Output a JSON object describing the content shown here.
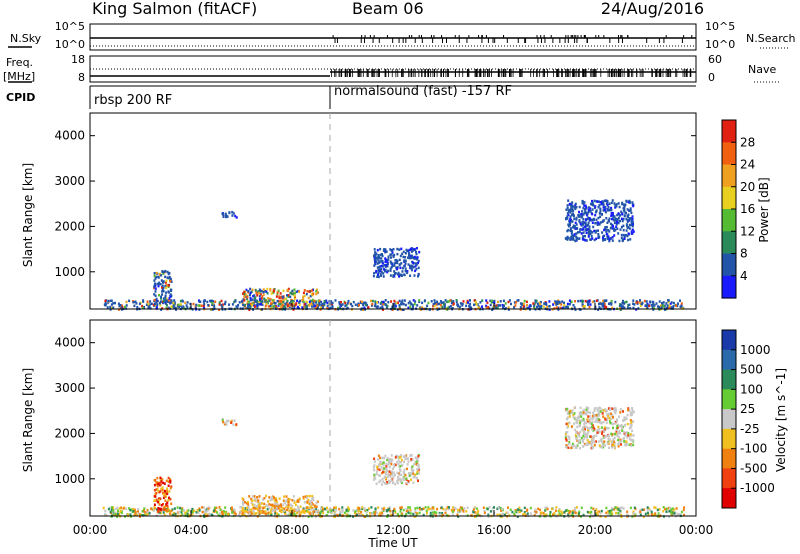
{
  "header": {
    "station": "King Salmon (fitACF)",
    "beam": "Beam 06",
    "date": "24/Aug/2016"
  },
  "strip_labels": {
    "nsky": "N.Sky",
    "nsearch": "N.Search",
    "freq_top": "Freq.",
    "freq_unit": "[MHz]",
    "nave": "Nave",
    "cpid": "CPID",
    "nsky_tick_top": "10^5",
    "nsky_tick_bottom": "10^0",
    "freq_tick_top": "18",
    "freq_tick_bottom": "8",
    "nave_tick_top": "60",
    "nave_tick_bottom": "0"
  },
  "cpid": {
    "segments": [
      {
        "start_hour": 0.0,
        "label": "rbsp 200 RF"
      },
      {
        "start_hour": 9.5,
        "label": "normalsound (fast) -157 RF"
      }
    ]
  },
  "chart_data": [
    {
      "type": "heatmap",
      "title": "",
      "xlabel": "",
      "ylabel": "Slant Range [km]",
      "xlim_hours": [
        0,
        24
      ],
      "ylim_km": [
        180,
        4500
      ],
      "y_ticks": [
        1000,
        2000,
        3000,
        4000
      ],
      "colorbar": {
        "label": "Power [dB]",
        "ticks": [
          "4",
          "8",
          "12",
          "16",
          "20",
          "24",
          "28"
        ],
        "colors": [
          "#1a1aff",
          "#2255aa",
          "#2a8a5a",
          "#55bb33",
          "#e8d020",
          "#f0a020",
          "#f06010",
          "#e02010"
        ]
      },
      "echo_regions": [
        {
          "t_start": 0.5,
          "t_end": 23.5,
          "r_start": 190,
          "r_end": 400,
          "level": "mixed"
        },
        {
          "t_start": 6.0,
          "t_end": 9.0,
          "r_start": 250,
          "r_end": 650,
          "level": "high"
        },
        {
          "t_start": 2.5,
          "t_end": 3.2,
          "r_start": 300,
          "r_end": 1050,
          "level": "mixed"
        },
        {
          "t_start": 11.2,
          "t_end": 13.0,
          "r_start": 900,
          "r_end": 1550,
          "level": "low"
        },
        {
          "t_start": 18.8,
          "t_end": 21.5,
          "r_start": 1700,
          "r_end": 2600,
          "level": "low"
        },
        {
          "t_start": 5.2,
          "t_end": 5.8,
          "r_start": 2200,
          "r_end": 2350,
          "level": "low"
        }
      ]
    },
    {
      "type": "heatmap",
      "title": "",
      "xlabel": "Time UT",
      "ylabel": "Slant Range [km]",
      "xlim_hours": [
        0,
        24
      ],
      "ylim_km": [
        180,
        4500
      ],
      "y_ticks": [
        1000,
        2000,
        3000,
        4000
      ],
      "x_tick_labels": [
        "00:00",
        "04:00",
        "08:00",
        "12:00",
        "16:00",
        "20:00",
        "00:00"
      ],
      "colorbar": {
        "label": "Velocity [m s^-1]",
        "ticks": [
          "1000",
          "500",
          "100",
          "25",
          "-25",
          "-100",
          "-500",
          "-1000"
        ],
        "colors": [
          "#1a3aaa",
          "#2a6aaa",
          "#2a8a5a",
          "#66cc33",
          "#c8c8c8",
          "#f0c020",
          "#f08010",
          "#f04010",
          "#e00000"
        ]
      },
      "echo_regions": [
        {
          "t_start": 0.5,
          "t_end": 23.5,
          "r_start": 190,
          "r_end": 400,
          "level": "mixed"
        },
        {
          "t_start": 6.0,
          "t_end": 9.0,
          "r_start": 250,
          "r_end": 650,
          "level": "low"
        },
        {
          "t_start": 2.5,
          "t_end": 3.2,
          "r_start": 300,
          "r_end": 1050,
          "level": "negative"
        },
        {
          "t_start": 11.2,
          "t_end": 13.0,
          "r_start": 900,
          "r_end": 1550,
          "level": "neutral"
        },
        {
          "t_start": 18.8,
          "t_end": 21.5,
          "r_start": 1700,
          "r_end": 2600,
          "level": "neutral"
        },
        {
          "t_start": 5.2,
          "t_end": 5.8,
          "r_start": 2200,
          "r_end": 2350,
          "level": "neutral"
        }
      ]
    }
  ]
}
